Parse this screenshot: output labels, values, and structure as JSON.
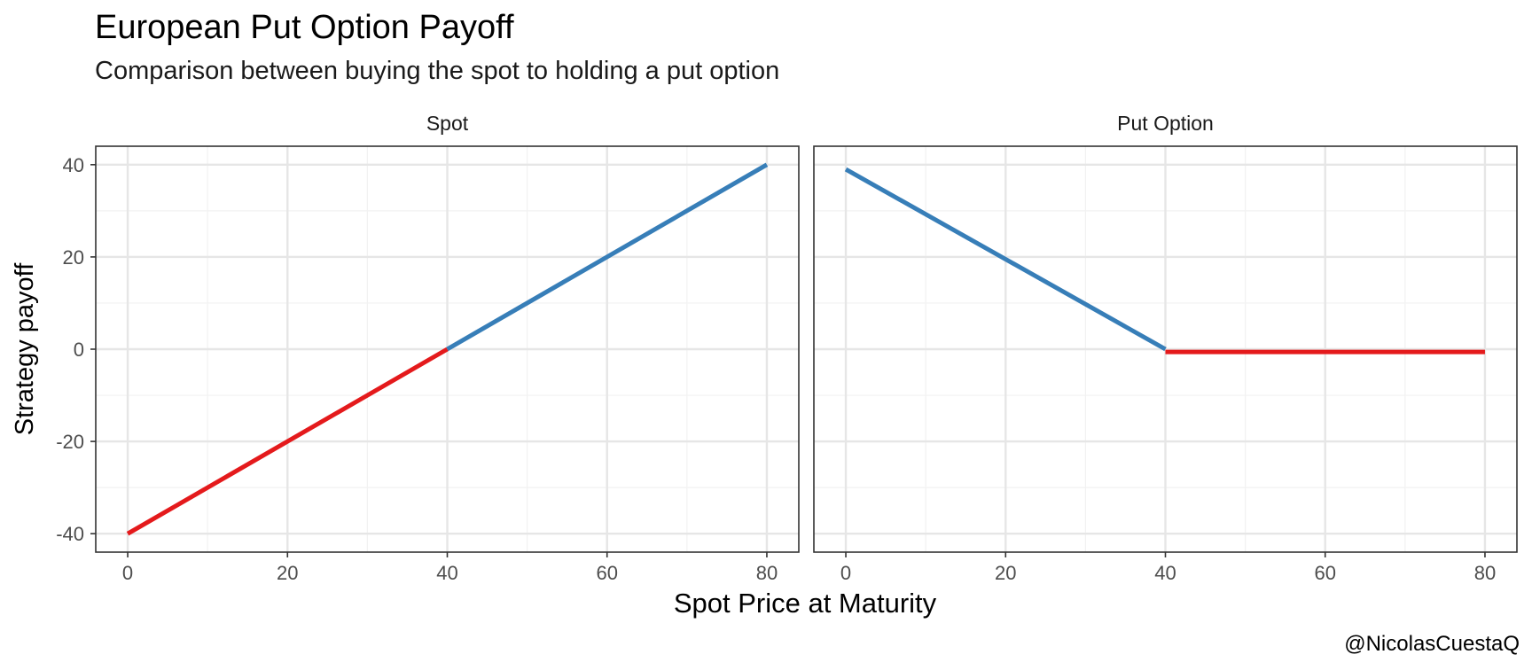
{
  "title": "European Put Option Payoff",
  "subtitle": "Comparison between buying the spot to holding a put option",
  "caption": "@NicolasCuestaQ",
  "xlabel": "Spot Price at Maturity",
  "ylabel": "Strategy payoff",
  "colors": {
    "loss": "#E41A1C",
    "gain": "#377EB8",
    "grid_major": "#e6e6e6",
    "grid_minor": "#f2f2f2",
    "panel_border": "#333333"
  },
  "chart_data": {
    "type": "line",
    "facets": [
      {
        "strip_label": "Spot",
        "segments": [
          {
            "x": [
              0,
              40
            ],
            "y": [
              -40,
              0
            ],
            "color_key": "loss"
          },
          {
            "x": [
              40,
              80
            ],
            "y": [
              0,
              40
            ],
            "color_key": "gain"
          }
        ]
      },
      {
        "strip_label": "Put Option",
        "segments": [
          {
            "x": [
              0,
              40
            ],
            "y": [
              39,
              0
            ],
            "color_key": "gain"
          },
          {
            "x": [
              40,
              80
            ],
            "y": [
              -0.6,
              -0.6
            ],
            "color_key": "loss"
          }
        ]
      }
    ],
    "xlim": [
      -4,
      84
    ],
    "ylim": [
      -44,
      44
    ],
    "x_ticks": [
      0,
      20,
      40,
      60,
      80
    ],
    "x_tick_labels": [
      "0",
      "20",
      "40",
      "60",
      "80"
    ],
    "y_ticks": [
      -40,
      -20,
      0,
      20,
      40
    ],
    "y_tick_labels": [
      "-40",
      "-20",
      "0",
      "20",
      "40"
    ],
    "grid": true,
    "legend": "none"
  }
}
